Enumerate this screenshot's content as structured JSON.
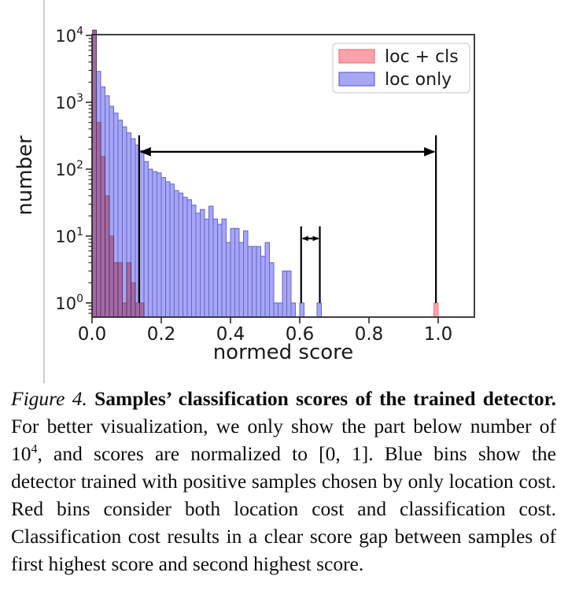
{
  "figure": {
    "caption": {
      "label": "Figure 4.",
      "title": "Samples’ classification scores of the trained detector.",
      "body_pre": "For better visualization, we only show the part below number of 10",
      "body_sup": "4",
      "body_post": ", and scores are normalized to [0, 1]. Blue bins show the detector trained with positive samples chosen by only location cost. Red bins consider both location cost and classification cost. Classification cost results in a clear score gap between samples of first highest score and second highest score."
    }
  },
  "chart_data": {
    "type": "bar",
    "subtype": "histogram",
    "title": "",
    "xlabel": "normed score",
    "ylabel": "number",
    "yscale": "log",
    "grid": false,
    "xlim": [
      0,
      1.104
    ],
    "ylim": [
      0.61,
      10000
    ],
    "x_tick_labels": [
      "0.0",
      "0.2",
      "0.4",
      "0.6",
      "0.8",
      "1.0"
    ],
    "x_tick_values": [
      0.0,
      0.2,
      0.4,
      0.6,
      0.8,
      1.0
    ],
    "y_tick_exponents": [
      0,
      1,
      2,
      3,
      4
    ],
    "y_tick_base": "10",
    "bins": {
      "start": 0,
      "width": 0.0125,
      "count": 80
    },
    "series": [
      {
        "name": "loc + cls",
        "fill": "#f9a2aa",
        "edge": "#ef7680",
        "values": [
          12000,
          500,
          155,
          40,
          10,
          4,
          4,
          1,
          4,
          2,
          1,
          1,
          0,
          0,
          0,
          0,
          0,
          0,
          0,
          0,
          0,
          0,
          0,
          0,
          0,
          0,
          0,
          0,
          0,
          0,
          0,
          0,
          0,
          0,
          0,
          0,
          0,
          0,
          0,
          0,
          0,
          0,
          0,
          0,
          0,
          0,
          0,
          0,
          0,
          0,
          0,
          0,
          0,
          0,
          0,
          0,
          0,
          0,
          0,
          0,
          0,
          0,
          0,
          0,
          0,
          0,
          0,
          0,
          0,
          0,
          0,
          0,
          0,
          0,
          0,
          0,
          0,
          0,
          0,
          1
        ]
      },
      {
        "name": "loc only",
        "fill": "#a6a6f2",
        "edge": "#6464d8",
        "values": [
          12000,
          2900,
          1700,
          1250,
          870,
          690,
          540,
          430,
          350,
          285,
          230,
          190,
          130,
          100,
          92,
          88,
          75,
          65,
          60,
          48,
          44,
          38,
          35,
          29,
          22,
          25,
          18,
          28,
          18,
          15,
          18,
          8,
          13,
          13,
          8,
          12,
          7,
          7,
          7,
          5,
          8,
          4,
          1,
          1,
          3,
          3,
          1,
          0,
          1,
          0,
          0,
          0,
          1,
          0,
          0,
          0,
          0,
          0,
          0,
          0,
          0,
          0,
          0,
          0,
          0,
          0,
          0,
          0,
          0,
          0,
          0,
          0,
          0,
          0,
          0,
          0,
          0,
          0,
          0,
          0
        ]
      }
    ],
    "legend": {
      "position": "upper right",
      "entries": [
        "loc + cls",
        "loc only"
      ]
    },
    "annotations": {
      "vlines": [
        {
          "x": 0.136,
          "y1": 1,
          "y2": 320
        },
        {
          "x": 0.604,
          "y1": 1,
          "y2": 14
        },
        {
          "x": 0.658,
          "y1": 1,
          "y2": 14
        },
        {
          "x": 0.9935,
          "y1": 1,
          "y2": 320
        }
      ],
      "arrows": [
        {
          "x1": 0.136,
          "x2": 0.9935,
          "y": 182
        },
        {
          "x1": 0.604,
          "x2": 0.658,
          "y": 9.2
        }
      ]
    },
    "colors": {
      "annotation": "#000000",
      "axis": "#2b2b2b",
      "tick_text": "#1a1a1a",
      "legend_border": "#d8d8d8",
      "legend_bg": "#ffffff"
    }
  }
}
